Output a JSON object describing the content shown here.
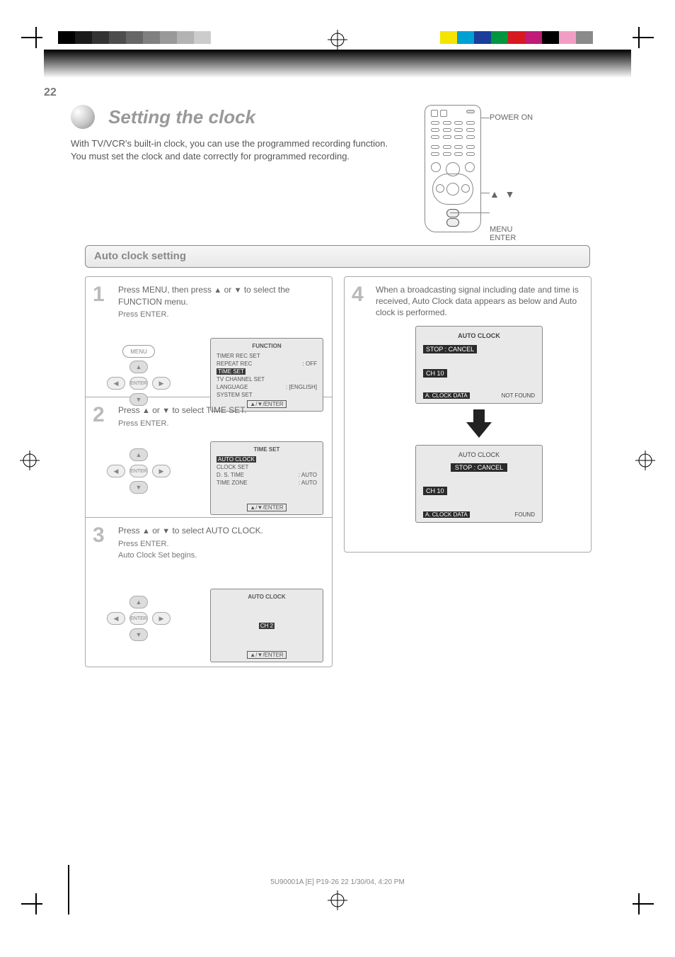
{
  "page_number": "22",
  "title": "Setting the clock",
  "subtitle": "With TV/VCR's built-in clock, you can use the programmed recording function. You must set the clock and date correctly for programmed recording.",
  "remote_callouts": {
    "poweron": "POWER ON",
    "arrows": "▲ / ▼",
    "menu_enter": "MENU\nENTER"
  },
  "section_header": "Auto clock setting",
  "steps": {
    "s1": {
      "num": "1",
      "text_a": "Press MENU, then press ",
      "text_b": " or ",
      "text_c": " to select the FUNCTION menu.",
      "note": "Press ENTER.",
      "osd": {
        "title": "FUNCTION",
        "lines": [
          [
            "TIMER REC SET",
            ""
          ],
          [
            "REPEAT REC",
            ": OFF"
          ],
          [
            "TIME SET",
            ""
          ],
          [
            "TV CHANNEL SET",
            ""
          ],
          [
            "LANGUAGE",
            ": [ENGLISH]"
          ],
          [
            "SYSTEM SET",
            ""
          ]
        ],
        "sel_index": 2,
        "footer": "▲/▼/ENTER"
      }
    },
    "s2": {
      "num": "2",
      "text_a": "Press ",
      "text_b": " or ",
      "text_c": " to select TIME SET.",
      "note": "Press ENTER.",
      "osd": {
        "title": "TIME SET",
        "lines": [
          [
            "AUTO CLOCK",
            ""
          ],
          [
            "CLOCK SET",
            ""
          ],
          [
            "D. S. TIME",
            ": AUTO"
          ],
          [
            "TIME ZONE",
            ": AUTO"
          ]
        ],
        "sel_index": 0,
        "footer": "▲/▼/ENTER"
      }
    },
    "s3": {
      "num": "3",
      "text_a": "Press ",
      "text_b": " or ",
      "text_c": " to select AUTO CLOCK.",
      "note_a": "Press ENTER.",
      "note_b": "Auto Clock Set begins.",
      "osd": {
        "title": "AUTO CLOCK",
        "lines_plain": [
          "AUTO CLOCK"
        ],
        "sel_text": "CH    2",
        "footer": "▲/▼/ENTER"
      }
    }
  },
  "right": {
    "num": "4",
    "text": "When a broadcasting signal including date and time is received, Auto Clock data appears as below and Auto clock is performed.",
    "osd1": {
      "title": "AUTO CLOCK",
      "stop": "STOP : CANCEL",
      "ch": "CH   10",
      "footer_left": "A. CLOCK DATA",
      "footer_right": "NOT FOUND"
    },
    "osd2": {
      "title": "AUTO CLOCK",
      "stop": "STOP : CANCEL",
      "ch": "CH   10",
      "footer_left": "A. CLOCK DATA",
      "footer_right": "FOUND"
    }
  },
  "footer_caption": "5U90001A [E] P19-26    22    1/30/04, 4:20 PM",
  "colors": {
    "grey_swatches": [
      "#000000",
      "#1a1a1a",
      "#333333",
      "#4d4d4d",
      "#666666",
      "#808080",
      "#999999",
      "#b3b3b3",
      "#cccccc",
      "#ffffff"
    ],
    "hue_swatches": [
      "#f4e400",
      "#00a0d2",
      "#1b3e9b",
      "#009640",
      "#d91920",
      "#bf1b77",
      "#000000",
      "#f29ec4",
      "#8a8a8a",
      "#ffffff"
    ]
  }
}
